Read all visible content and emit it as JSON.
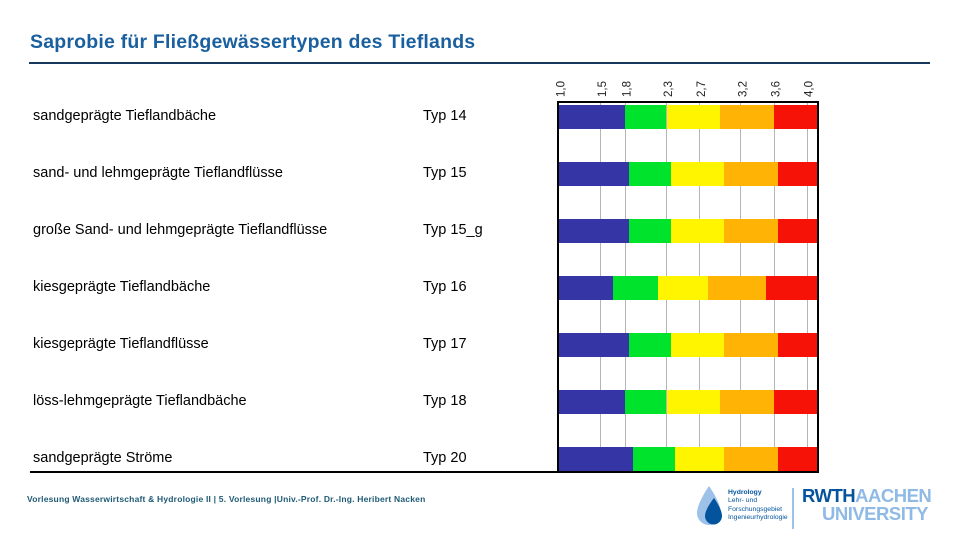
{
  "slide": {
    "title": "Saprobie für Fließgewässertypen des Tieflands",
    "footer": "Vorlesung Wasserwirtschaft & Hydrologie II | 5. Vorlesung |Univ.-Prof. Dr.-Ing. Heribert Nacken"
  },
  "chart_data": {
    "type": "bar",
    "orientation": "horizontal-stacked",
    "title": "Saprobie für Fließgewässertypen des Tieflands",
    "axis": {
      "min": 1.0,
      "max": 4.0,
      "tick_labels": [
        "1,0",
        "1,5",
        "1,8",
        "2,3",
        "2,7",
        "3,2",
        "3,6",
        "4,0"
      ],
      "tick_values": [
        1.0,
        1.5,
        1.8,
        2.3,
        2.7,
        3.2,
        3.6,
        4.0
      ],
      "grid": true
    },
    "segment_colors": [
      "#3535a5",
      "#00e32d",
      "#fff500",
      "#ffb305",
      "#f71207"
    ],
    "rows": [
      {
        "label": "sandgeprägte Tieflandbäche",
        "type": "Typ 14",
        "boundaries": [
          1.8,
          2.3,
          2.95,
          3.6
        ]
      },
      {
        "label": "sand- und lehmgeprägte Tieflandflüsse",
        "type": "Typ 15",
        "boundaries": [
          1.85,
          2.35,
          3.0,
          3.65
        ]
      },
      {
        "label": "große Sand- und lehmgeprägte Tieflandflüsse",
        "type": "Typ 15_g",
        "boundaries": [
          1.85,
          2.35,
          3.0,
          3.65
        ]
      },
      {
        "label": "kiesgeprägte Tieflandbäche",
        "type": "Typ 16",
        "boundaries": [
          1.65,
          2.2,
          2.8,
          3.5
        ]
      },
      {
        "label": "kiesgeprägte Tieflandflüsse",
        "type": "Typ 17",
        "boundaries": [
          1.85,
          2.35,
          3.0,
          3.65
        ]
      },
      {
        "label": "löss-lehmgeprägte Tieflandbäche",
        "type": "Typ 18",
        "boundaries": [
          1.8,
          2.3,
          2.95,
          3.6
        ]
      },
      {
        "label": "sandgeprägte Ströme",
        "type": "Typ 20",
        "boundaries": [
          1.9,
          2.4,
          3.0,
          3.65
        ]
      }
    ]
  },
  "logos": {
    "hydrology": {
      "line1": "Hydrology",
      "line2": "Lehr- und",
      "line3": "Forschungsgebiet",
      "line4": "Ingenieurhydrologie"
    },
    "rwth": {
      "part_dark": "RWTH",
      "part_light": "AACHEN",
      "line2": "UNIVERSITY"
    }
  },
  "colors": {
    "title_blue": "#1a5f9e",
    "rule_dark": "#17375d",
    "footer_blue": "#1e5a75",
    "rwth_dark_blue": "#04539d",
    "rwth_light_blue": "#8ebae5",
    "gridline_gray": "#b5b5b5"
  }
}
